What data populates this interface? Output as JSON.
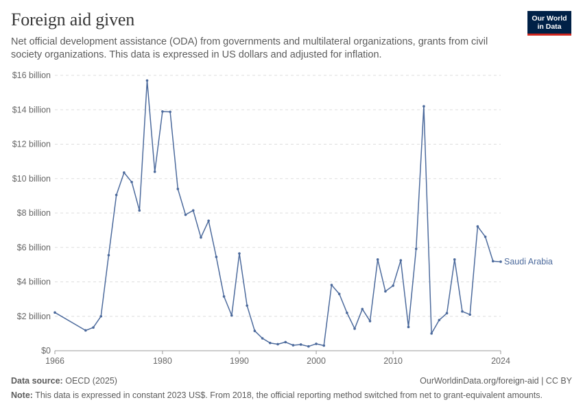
{
  "header": {
    "title": "Foreign aid given",
    "subtitle": "Net official development assistance (ODA) from governments and multilateral organizations, grants from civil society organizations. This data is expressed in US dollars and adjusted for inflation."
  },
  "logo": {
    "line1": "Our World",
    "line2": "in Data",
    "bg_color": "#002147",
    "accent_color": "#ce261e"
  },
  "footer": {
    "source_label": "Data source:",
    "source_value": "OECD (2025)",
    "credit": "OurWorldinData.org/foreign-aid | CC BY",
    "note_label": "Note:",
    "note_value": "This data is expressed in constant 2023 US$. From 2018, the official reporting method switched from net to grant-equivalent amounts."
  },
  "chart_data": {
    "type": "line",
    "xlim": [
      1966,
      2024
    ],
    "ylim": [
      0,
      16
    ],
    "grid": true,
    "yticks": [
      {
        "value": 0,
        "label": "$0"
      },
      {
        "value": 2,
        "label": "$2 billion"
      },
      {
        "value": 4,
        "label": "$4 billion"
      },
      {
        "value": 6,
        "label": "$6 billion"
      },
      {
        "value": 8,
        "label": "$8 billion"
      },
      {
        "value": 10,
        "label": "$10 billion"
      },
      {
        "value": 12,
        "label": "$12 billion"
      },
      {
        "value": 14,
        "label": "$14 billion"
      },
      {
        "value": 16,
        "label": "$16 billion"
      }
    ],
    "xticks": [
      {
        "value": 1966,
        "label": "1966"
      },
      {
        "value": 1980,
        "label": "1980"
      },
      {
        "value": 1990,
        "label": "1990"
      },
      {
        "value": 2000,
        "label": "2000"
      },
      {
        "value": 2010,
        "label": "2010"
      },
      {
        "value": 2024,
        "label": "2024"
      }
    ],
    "series": [
      {
        "name": "Saudi Arabia",
        "color": "#4c6a9c",
        "x": [
          1966,
          1970,
          1971,
          1972,
          1973,
          1974,
          1975,
          1976,
          1977,
          1978,
          1979,
          1980,
          1981,
          1982,
          1983,
          1984,
          1985,
          1986,
          1987,
          1988,
          1989,
          1990,
          1991,
          1992,
          1993,
          1994,
          1995,
          1996,
          1997,
          1998,
          1999,
          2000,
          2001,
          2002,
          2003,
          2004,
          2005,
          2006,
          2007,
          2008,
          2009,
          2010,
          2011,
          2012,
          2013,
          2014,
          2015,
          2016,
          2017,
          2018,
          2019,
          2020,
          2021,
          2022,
          2023,
          2024
        ],
        "y": [
          2.22,
          1.18,
          1.35,
          2.0,
          5.55,
          9.05,
          10.35,
          9.8,
          8.15,
          15.7,
          10.4,
          13.9,
          13.88,
          9.4,
          7.9,
          8.15,
          6.58,
          7.55,
          5.45,
          3.15,
          2.05,
          5.65,
          2.62,
          1.15,
          0.72,
          0.45,
          0.38,
          0.5,
          0.32,
          0.36,
          0.25,
          0.4,
          0.3,
          3.82,
          3.3,
          2.2,
          1.28,
          2.42,
          1.72,
          5.3,
          3.45,
          3.78,
          5.25,
          1.38,
          5.92,
          14.2,
          1.0,
          1.78,
          2.18,
          5.3,
          2.28,
          2.1,
          7.22,
          6.62,
          5.2,
          5.17
        ]
      }
    ]
  }
}
